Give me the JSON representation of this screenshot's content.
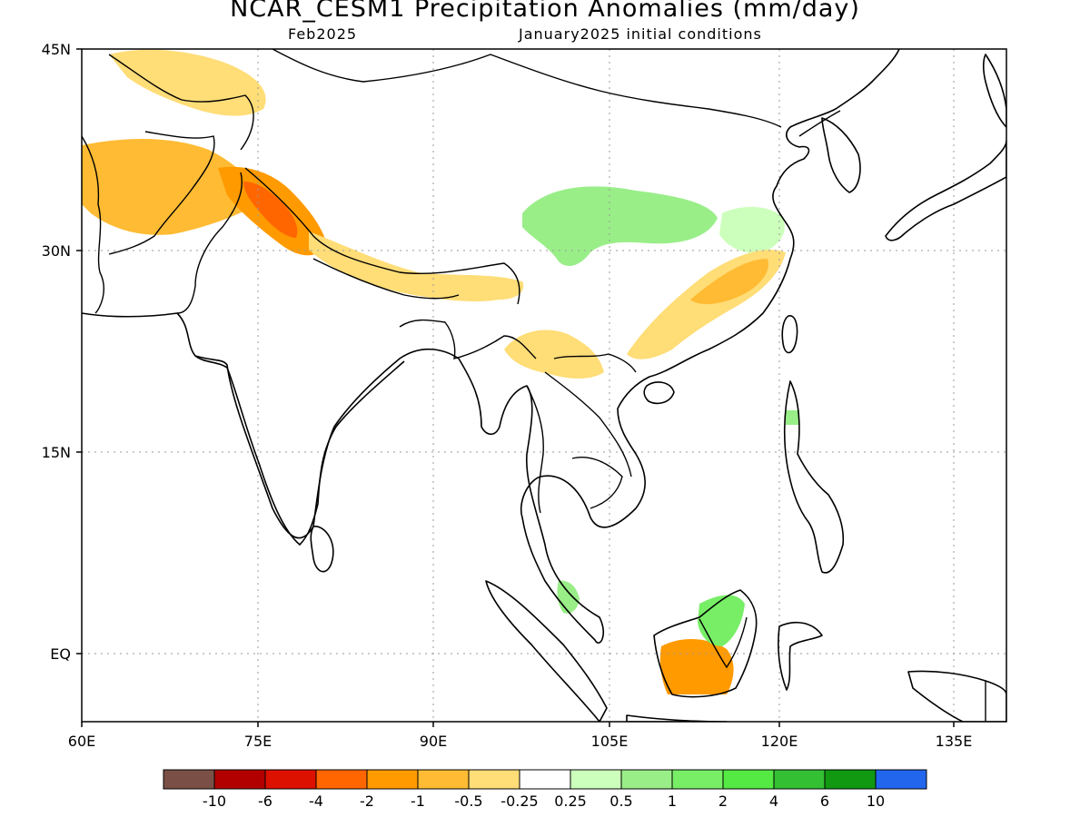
{
  "title": "NCAR_CESM1 Precipitation Anomalies (mm/day)",
  "subtitle_left": "Feb2025",
  "subtitle_right": "January2025 initial conditions",
  "lon_labels": [
    "60E",
    "75E",
    "90E",
    "105E",
    "120E",
    "135E"
  ],
  "lat_labels": [
    "45N",
    "30N",
    "15N",
    "EQ"
  ],
  "colorbar": {
    "colors": [
      "#7a5046",
      "#b20000",
      "#dd1100",
      "#ff6600",
      "#ff9a00",
      "#ffbb33",
      "#ffdd77",
      "#ffffff",
      "#ccffbb",
      "#99ee88",
      "#77ee66",
      "#55e944",
      "#33c033",
      "#119911",
      "#2266ee"
    ],
    "labels": [
      "-10",
      "-6",
      "-4",
      "-2",
      "-1",
      "-0.5",
      "-0.25",
      "0.25",
      "0.5",
      "1",
      "2",
      "4",
      "6",
      "10"
    ]
  },
  "anomaly_regions": [
    {
      "region": "Iran-Afghanistan-Pakistan",
      "color": "#ffbb33"
    },
    {
      "region": "Western Himalaya",
      "color": "#ff9a00"
    },
    {
      "region": "Western Himalaya core",
      "color": "#ff6600"
    },
    {
      "region": "Central Asia",
      "color": "#ffdd77"
    },
    {
      "region": "Himalaya-Nepal",
      "color": "#ffdd77"
    },
    {
      "region": "Tibetan Plateau",
      "color": "#99ee88"
    },
    {
      "region": "Eastern China",
      "color": "#ccffbb"
    },
    {
      "region": "Southeast China",
      "color": "#ffdd77"
    },
    {
      "region": "Southeast China core",
      "color": "#ffbb33"
    },
    {
      "region": "Myanmar-Laos",
      "color": "#ffdd77"
    },
    {
      "region": "Southern Borneo",
      "color": "#ff9a00"
    },
    {
      "region": "Northern Borneo",
      "color": "#77ee66"
    },
    {
      "region": "Sumatra",
      "color": "#99ee88"
    },
    {
      "region": "Philippines",
      "color": "#99ee88"
    }
  ]
}
